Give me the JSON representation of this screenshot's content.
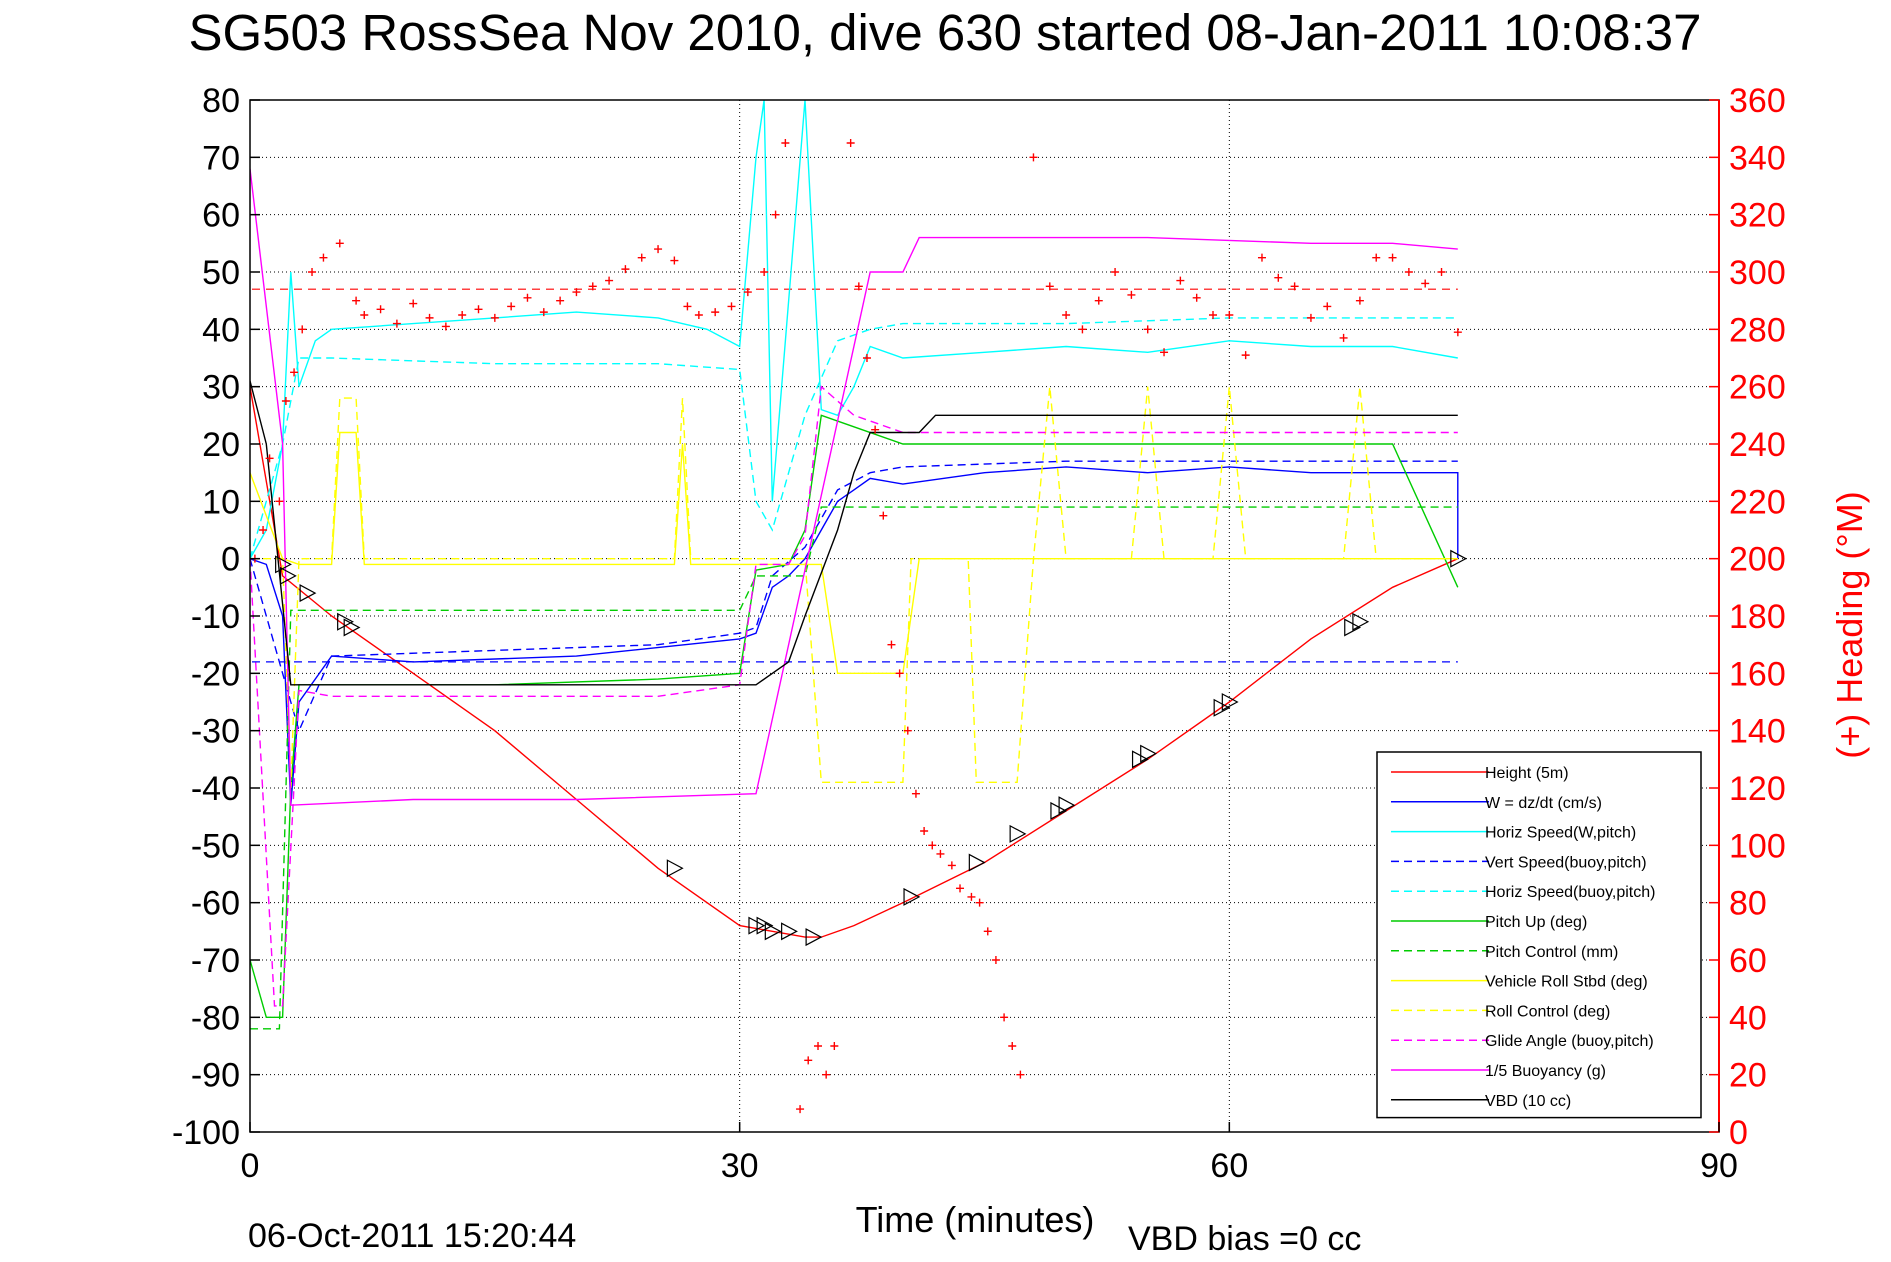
{
  "figure": {
    "title": "SG503 RossSea Nov 2010, dive 630 started 08-Jan-2011 10:08:37",
    "xlabel": "Time (minutes)",
    "ylabel_right": "(+) Heading (°M)",
    "timestamp": "06-Oct-2011 15:20:44",
    "vbd_note": "VBD bias =0 cc"
  },
  "chart_data": {
    "type": "line",
    "xlim": [
      0,
      90
    ],
    "ylim": [
      -100,
      80
    ],
    "ylim_right": [
      0,
      360
    ],
    "xticks": [
      "0",
      "30",
      "60",
      "90"
    ],
    "yticks": [
      "80",
      "70",
      "60",
      "50",
      "40",
      "30",
      "20",
      "10",
      "0",
      "-10",
      "-20",
      "-30",
      "-40",
      "-50",
      "-60",
      "-70",
      "-80",
      "-90",
      "-100"
    ],
    "yticks_right": [
      "360",
      "340",
      "320",
      "300",
      "280",
      "260",
      "240",
      "220",
      "200",
      "180",
      "160",
      "140",
      "120",
      "100",
      "80",
      "60",
      "40",
      "20",
      "0"
    ],
    "grid": true,
    "legend_position": "bottom-right",
    "reference_lines": [
      {
        "y": 47,
        "color": "#ff0000",
        "dash": true
      },
      {
        "y": -18,
        "color": "#0000ff",
        "dash": true
      }
    ],
    "series": [
      {
        "name": "Height (5m)",
        "color": "#ff0000",
        "style": "solid",
        "x": [
          0,
          2,
          5,
          10,
          15,
          20,
          25,
          30,
          32,
          34,
          35,
          37,
          40,
          45,
          50,
          55,
          60,
          65,
          70,
          74
        ],
        "y": [
          30,
          -3,
          -10,
          -20,
          -30,
          -42,
          -54,
          -64,
          -65,
          -66,
          -66,
          -64,
          -60,
          -53,
          -44,
          -35,
          -25,
          -14,
          -5,
          0
        ]
      },
      {
        "name": "W = dz/dt (cm/s)",
        "color": "#0000ff",
        "style": "solid",
        "x": [
          0,
          1,
          2,
          2.5,
          3,
          5,
          10,
          20,
          30,
          31,
          32,
          33,
          34,
          35,
          36,
          37,
          38,
          40,
          45,
          50,
          55,
          60,
          65,
          70,
          74,
          74
        ],
        "y": [
          0,
          -1,
          -10,
          -43,
          -25,
          -17,
          -18,
          -17,
          -14,
          -13,
          -5,
          -3,
          0,
          5,
          10,
          12,
          14,
          13,
          15,
          16,
          15,
          16,
          15,
          15,
          15,
          0
        ]
      },
      {
        "name": "Horiz Speed(W,pitch)",
        "color": "#00ffff",
        "style": "solid",
        "x": [
          0,
          1,
          2,
          2.5,
          3,
          4,
          5,
          10,
          15,
          20,
          25,
          28,
          30,
          31,
          31.5,
          32,
          34,
          35,
          36,
          37,
          38,
          40,
          45,
          50,
          55,
          60,
          65,
          70,
          74
        ],
        "y": [
          0,
          5,
          20,
          50,
          30,
          38,
          40,
          41,
          42,
          43,
          42,
          40,
          37,
          70,
          80,
          10,
          80,
          26,
          25,
          30,
          37,
          35,
          36,
          37,
          36,
          38,
          37,
          37,
          35
        ]
      },
      {
        "name": "Vert Speed(buoy,pitch)",
        "color": "#0000ff",
        "style": "dashed",
        "x": [
          0,
          2,
          3,
          5,
          15,
          25,
          30,
          31,
          32,
          34,
          36,
          38,
          40,
          50,
          60,
          70,
          74
        ],
        "y": [
          0,
          -20,
          -30,
          -17,
          -16,
          -15,
          -13,
          -12,
          -3,
          2,
          12,
          15,
          16,
          17,
          17,
          17,
          17
        ]
      },
      {
        "name": "Horiz Speed(buoy,pitch)",
        "color": "#00ffff",
        "style": "dashed",
        "x": [
          0,
          2,
          3,
          5,
          15,
          25,
          30,
          31,
          32,
          34,
          36,
          38,
          40,
          50,
          60,
          70,
          74
        ],
        "y": [
          0,
          20,
          35,
          35,
          34,
          34,
          33,
          10,
          5,
          25,
          38,
          40,
          41,
          41,
          42,
          42,
          42
        ]
      },
      {
        "name": "Pitch Up (deg)",
        "color": "#00cc00",
        "style": "solid",
        "x": [
          0,
          1,
          2,
          2.5,
          3,
          5,
          15,
          25,
          30,
          31,
          33,
          34,
          35,
          37,
          40,
          50,
          60,
          70,
          74
        ],
        "y": [
          -70,
          -80,
          -80,
          -40,
          -22,
          -22,
          -22,
          -21,
          -20,
          -2,
          -1,
          5,
          25,
          23,
          20,
          20,
          20,
          20,
          -5
        ]
      },
      {
        "name": "Pitch Control (mm)",
        "color": "#00cc00",
        "style": "dashed",
        "x": [
          0,
          1.8,
          2.5,
          3,
          30,
          31,
          34,
          35,
          37,
          74
        ],
        "y": [
          -82,
          -82,
          -9,
          -9,
          -9,
          -3,
          -3,
          9,
          9,
          9
        ]
      },
      {
        "name": "Vehicle Roll Stbd (deg)",
        "color": "#ffff00",
        "style": "solid",
        "x": [
          0,
          2,
          3,
          5,
          5.5,
          6.5,
          7,
          20,
          26,
          26.5,
          27,
          30,
          33,
          34,
          35,
          36,
          38,
          40,
          41,
          45,
          47,
          50,
          55,
          60,
          68,
          70,
          74
        ],
        "y": [
          15,
          0,
          -1,
          -1,
          22,
          22,
          -1,
          -1,
          -1,
          20,
          -1,
          -1,
          -1,
          -1,
          -1,
          -20,
          -20,
          -20,
          0,
          0,
          0,
          0,
          0,
          0,
          0,
          0,
          0
        ]
      },
      {
        "name": "Roll Control (deg)",
        "color": "#ffff00",
        "style": "dashed",
        "x": [
          0,
          2,
          2.5,
          3,
          5,
          5.5,
          6.5,
          7,
          26,
          26.5,
          27,
          30,
          34,
          35,
          38,
          40,
          40.5,
          44,
          44.5,
          47,
          48,
          49,
          50,
          54,
          55,
          56,
          59,
          60,
          61,
          67,
          68,
          69,
          74
        ],
        "y": [
          0,
          0,
          -40,
          0,
          0,
          28,
          28,
          0,
          0,
          28,
          0,
          0,
          0,
          -39,
          -39,
          -39,
          0,
          0,
          -39,
          -39,
          0,
          30,
          0,
          0,
          30,
          0,
          0,
          30,
          0,
          0,
          30,
          0,
          0
        ]
      },
      {
        "name": "Glide Angle (buoy,pitch)",
        "color": "#ff00ff",
        "style": "dashed",
        "x": [
          0,
          1.5,
          2,
          3,
          5,
          15,
          25,
          30,
          31,
          33,
          34,
          35,
          37,
          40,
          50,
          60,
          70,
          74
        ],
        "y": [
          0,
          -78,
          -78,
          -23,
          -24,
          -24,
          -24,
          -22,
          -1,
          -1,
          4,
          30,
          25,
          22,
          22,
          22,
          22,
          22
        ]
      },
      {
        "name": "1/5 Buoyancy (g)",
        "color": "#ff00ff",
        "style": "solid",
        "x": [
          0,
          2,
          2.5,
          10,
          20,
          31,
          38,
          40,
          41,
          55,
          65,
          70,
          74
        ],
        "y": [
          68,
          20,
          -43,
          -42,
          -42,
          -41,
          50,
          50,
          56,
          56,
          55,
          55,
          54
        ]
      },
      {
        "name": "VBD (10 cc)",
        "color": "#000000",
        "style": "solid",
        "x": [
          0,
          1,
          2.5,
          3,
          20,
          30,
          31,
          33,
          34,
          36,
          37,
          38,
          41,
          42,
          74
        ],
        "y": [
          31,
          20,
          -22,
          -22,
          -22,
          -22,
          -22,
          -18,
          -10,
          5,
          15,
          22,
          22,
          25,
          25
        ]
      }
    ],
    "heading_points": {
      "name": "Heading",
      "color": "#ff0000",
      "marker": "+",
      "x": [
        0.3,
        0.8,
        1.2,
        1.8,
        2.2,
        2.7,
        3.2,
        3.8,
        4.5,
        5.5,
        6.5,
        7,
        8,
        9,
        10,
        11,
        12,
        13,
        14,
        15,
        16,
        17,
        18,
        19,
        20,
        21,
        22,
        23,
        24,
        25,
        26,
        26.8,
        27.5,
        28.5,
        29.5,
        30.5,
        31.5,
        32.2,
        32.8,
        33.3,
        33.7,
        34.2,
        34.8,
        35.3,
        35.8,
        36.3,
        36.8,
        37.3,
        37.8,
        38.3,
        38.8,
        39.3,
        39.8,
        40.3,
        40.8,
        41.3,
        41.8,
        42.3,
        43,
        43.5,
        44.2,
        44.7,
        45.2,
        45.7,
        46.2,
        46.7,
        47.2,
        48,
        49,
        50,
        51,
        52,
        53,
        54,
        55,
        56,
        57,
        58,
        59,
        60,
        61,
        62,
        63,
        64,
        65,
        66,
        67,
        68,
        69,
        70,
        71,
        72,
        73,
        74
      ],
      "y": [
        200,
        210,
        235,
        220,
        255,
        265,
        280,
        300,
        305,
        310,
        290,
        285,
        287,
        282,
        289,
        284,
        281,
        285,
        287,
        284,
        288,
        291,
        286,
        290,
        293,
        295,
        297,
        301,
        305,
        308,
        304,
        288,
        285,
        286,
        288,
        293,
        300,
        320,
        345,
        363,
        8,
        25,
        30,
        20,
        30,
        380,
        345,
        295,
        270,
        245,
        215,
        170,
        160,
        140,
        118,
        105,
        100,
        97,
        93,
        85,
        82,
        80,
        70,
        60,
        40,
        30,
        20,
        340,
        295,
        285,
        280,
        290,
        300,
        292,
        280,
        272,
        297,
        291,
        285,
        285,
        271,
        305,
        298,
        295,
        284,
        288,
        277,
        290,
        305,
        305,
        300,
        296,
        300,
        279
      ]
    },
    "triangle_markers": {
      "color": "#000000",
      "x": [
        2,
        2.3,
        3.5,
        5.8,
        6.2,
        26,
        31,
        31.5,
        32,
        33,
        34.5,
        40.5,
        44.5,
        47,
        49.5,
        50,
        54.5,
        55,
        59.5,
        60,
        67.5,
        68,
        74
      ],
      "y": [
        -1,
        -3,
        -6,
        -11,
        -12,
        -54,
        -64,
        -64,
        -65,
        -65,
        -66,
        -59,
        -53,
        -48,
        -44,
        -43,
        -35,
        -34,
        -26,
        -25,
        -12,
        -11,
        0
      ]
    }
  }
}
